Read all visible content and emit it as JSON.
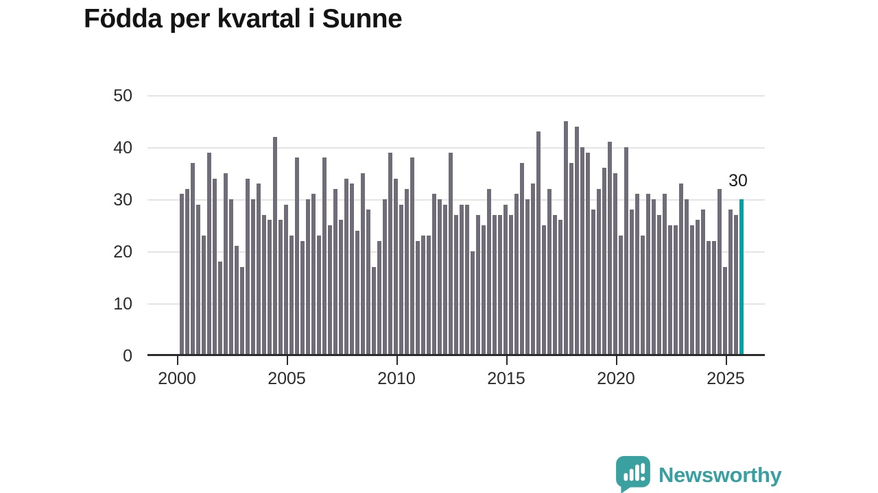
{
  "title": "Födda per kvartal i Sunne",
  "chart_data": {
    "type": "bar",
    "title": "Födda per kvartal i Sunne",
    "x_start": "2000-Q1",
    "x_end": "2025-Q3",
    "x_tick_labels": [
      "2000",
      "2005",
      "2010",
      "2015",
      "2020",
      "2025"
    ],
    "y_tick_labels": [
      "0",
      "10",
      "20",
      "30",
      "40",
      "50"
    ],
    "ylim": [
      0,
      50
    ],
    "grid": true,
    "bar_color": "#706d78",
    "highlight_color": "#0b9e9e",
    "highlight_last_bar": true,
    "values": [
      31,
      32,
      37,
      29,
      23,
      39,
      34,
      18,
      35,
      30,
      21,
      17,
      34,
      30,
      33,
      27,
      26,
      42,
      26,
      29,
      23,
      38,
      22,
      30,
      31,
      23,
      38,
      25,
      32,
      26,
      34,
      33,
      24,
      35,
      28,
      17,
      22,
      30,
      39,
      34,
      29,
      32,
      38,
      22,
      23,
      23,
      31,
      30,
      29,
      39,
      27,
      29,
      29,
      20,
      27,
      25,
      32,
      27,
      27,
      29,
      27,
      31,
      37,
      30,
      33,
      43,
      25,
      32,
      27,
      26,
      45,
      37,
      44,
      40,
      39,
      28,
      32,
      36,
      41,
      35,
      23,
      40,
      28,
      31,
      23,
      31,
      30,
      27,
      31,
      25,
      25,
      33,
      30,
      25,
      26,
      28,
      22,
      22,
      32,
      17,
      28,
      27,
      30
    ]
  },
  "annotation": {
    "last_value": "30"
  },
  "footer": {
    "brand": "Newsworthy",
    "logo_icon": "bar-chart-speech-bubble-icon",
    "brand_color": "#38a0a0"
  }
}
